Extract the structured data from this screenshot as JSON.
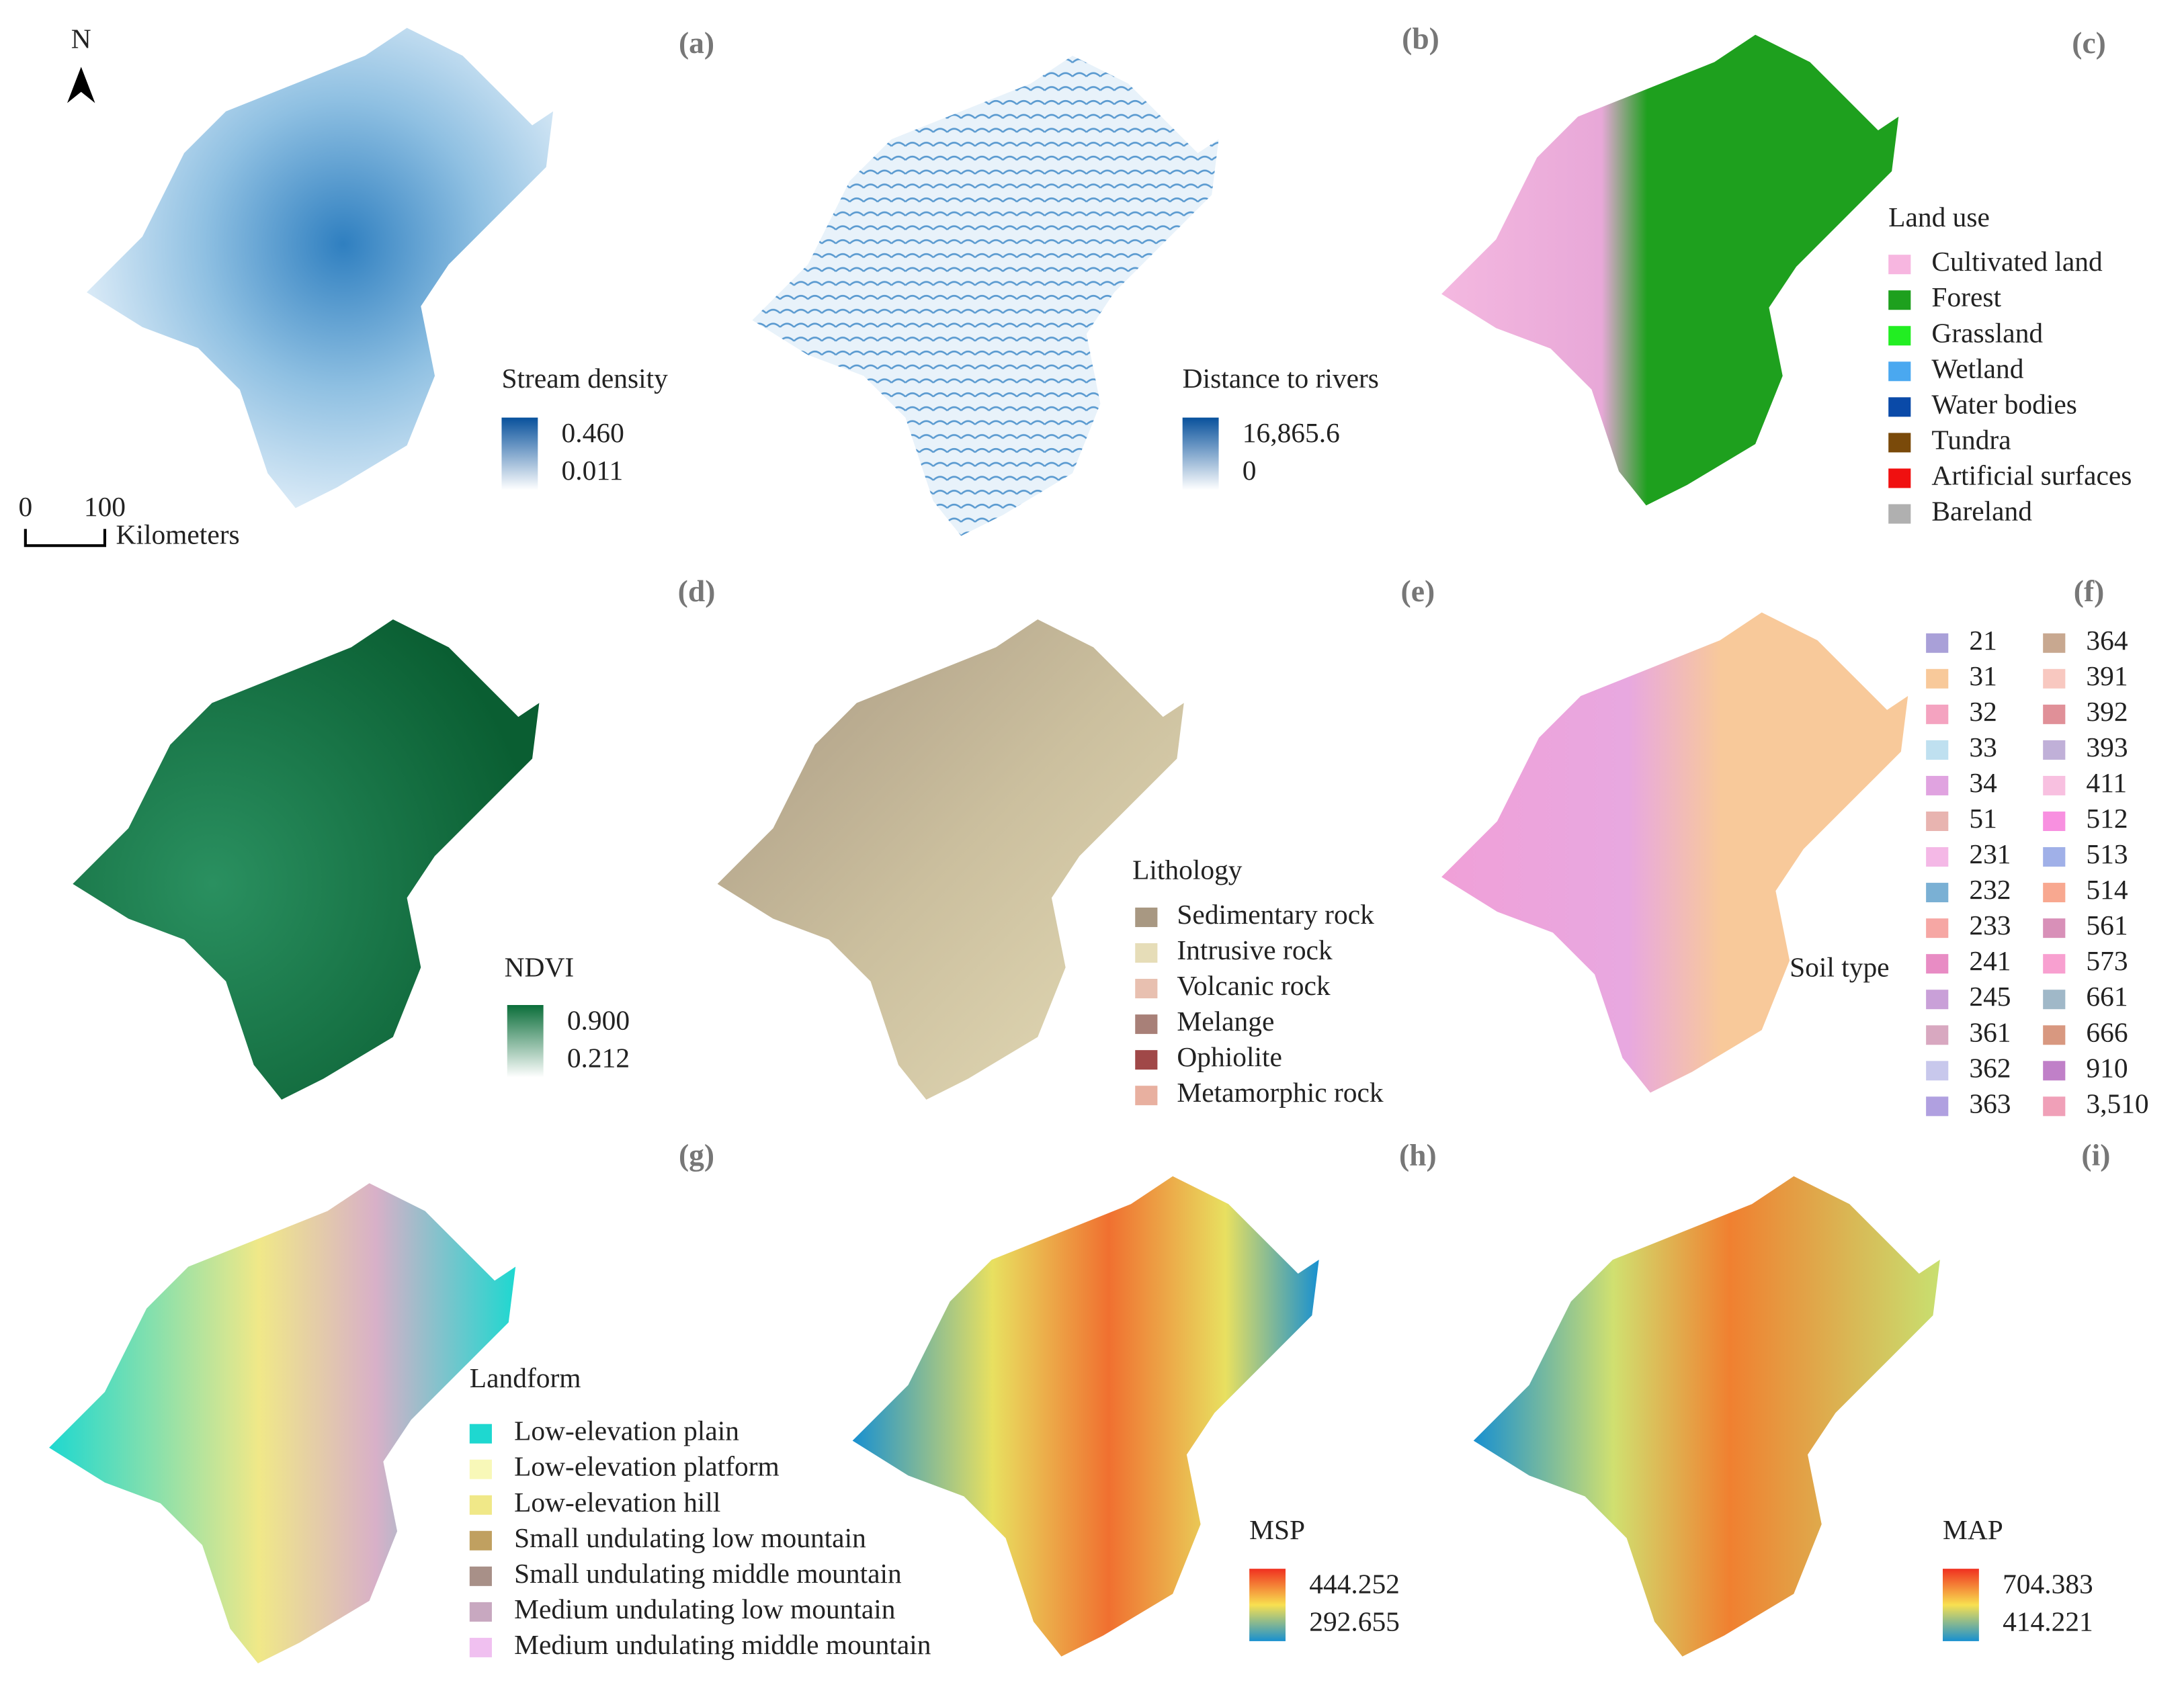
{
  "north": "N",
  "scale_bar": {
    "start": "0",
    "end": "100",
    "unit": "Kilometers"
  },
  "panels": [
    {
      "label": "(a)",
      "legend": {
        "title": "Stream density",
        "max": "0.460",
        "min": "0.011",
        "ramp": [
          "#08519c",
          "#ffffff"
        ]
      }
    },
    {
      "label": "(b)",
      "legend": {
        "title": "Distance to rivers",
        "max": "16,865.6",
        "min": "0",
        "ramp": [
          "#08519c",
          "#ffffff"
        ]
      }
    },
    {
      "label": "(c)",
      "legend": {
        "title": "Land use",
        "items": [
          {
            "name": "Cultivated land",
            "color": "#f7b6e0"
          },
          {
            "name": "Forest",
            "color": "#1ea01e"
          },
          {
            "name": "Grassland",
            "color": "#22ee22"
          },
          {
            "name": "Wetland",
            "color": "#4aa8f0"
          },
          {
            "name": "Water bodies",
            "color": "#0a4aa8"
          },
          {
            "name": "Tundra",
            "color": "#7a4a0a"
          },
          {
            "name": "Artificial surfaces",
            "color": "#f01010"
          },
          {
            "name": "Bareland",
            "color": "#b0b0b0"
          }
        ]
      }
    },
    {
      "label": "(d)",
      "legend": {
        "title": "NDVI",
        "max": "0.900",
        "min": "0.212",
        "ramp": [
          "#0b6e3a",
          "#ffffff"
        ]
      }
    },
    {
      "label": "(e)",
      "legend": {
        "title": "Lithology",
        "items": [
          {
            "name": "Sedimentary rock",
            "color": "#a89882"
          },
          {
            "name": "Intrusive rock",
            "color": "#e6ddb8"
          },
          {
            "name": "Volcanic rock",
            "color": "#e8c0b0"
          },
          {
            "name": "Melange",
            "color": "#a88078"
          },
          {
            "name": "Ophiolite",
            "color": "#a04848"
          },
          {
            "name": "Metamorphic rock",
            "color": "#e8b0a0"
          }
        ]
      }
    },
    {
      "label": "(f)",
      "legend": {
        "title": "Soil type",
        "items": [
          {
            "name": "21",
            "color": "#a9a0d8"
          },
          {
            "name": "31",
            "color": "#f8c99a"
          },
          {
            "name": "32",
            "color": "#f4a3c0"
          },
          {
            "name": "33",
            "color": "#bfe0f0"
          },
          {
            "name": "34",
            "color": "#e0a3e0"
          },
          {
            "name": "51",
            "color": "#e8b4b0"
          },
          {
            "name": "231",
            "color": "#f4b8e6"
          },
          {
            "name": "232",
            "color": "#7ab0d4"
          },
          {
            "name": "233",
            "color": "#f6a7a4"
          },
          {
            "name": "241",
            "color": "#e88cc4"
          },
          {
            "name": "245",
            "color": "#c9a0d8"
          },
          {
            "name": "361",
            "color": "#d8a8c0"
          },
          {
            "name": "362",
            "color": "#c8c8ec"
          },
          {
            "name": "363",
            "color": "#b0a0e0"
          },
          {
            "name": "364",
            "color": "#c8a890"
          },
          {
            "name": "391",
            "color": "#f8c8c0"
          },
          {
            "name": "392",
            "color": "#e09098"
          },
          {
            "name": "393",
            "color": "#c0b0d8"
          },
          {
            "name": "411",
            "color": "#f8c0e0"
          },
          {
            "name": "512",
            "color": "#f890e0"
          },
          {
            "name": "513",
            "color": "#a0b0e8"
          },
          {
            "name": "514",
            "color": "#f8a890"
          },
          {
            "name": "561",
            "color": "#d890b8"
          },
          {
            "name": "573",
            "color": "#f8a0d0"
          },
          {
            "name": "661",
            "color": "#a0b8c8"
          },
          {
            "name": "666",
            "color": "#d89880"
          },
          {
            "name": "910",
            "color": "#c080c8"
          },
          {
            "name": "3,510",
            "color": "#f0a0b8"
          }
        ]
      }
    },
    {
      "label": "(g)",
      "legend": {
        "title": "Landform",
        "items": [
          {
            "name": "Low-elevation plain",
            "color": "#1ed8d0"
          },
          {
            "name": "Low-elevation platform",
            "color": "#f8f8b8"
          },
          {
            "name": "Low-elevation hill",
            "color": "#f0e888"
          },
          {
            "name": "Small undulating low mountain",
            "color": "#c0a060"
          },
          {
            "name": "Small undulating middle mountain",
            "color": "#a89088"
          },
          {
            "name": "Medium undulating low mountain",
            "color": "#c8a8c0"
          },
          {
            "name": "Medium undulating middle mountain",
            "color": "#f0c0f0"
          }
        ]
      }
    },
    {
      "label": "(h)",
      "legend": {
        "title": "MSP",
        "max": "444.252",
        "min": "292.655",
        "ramp": [
          "#f03020",
          "#f8e050",
          "#1890d0"
        ]
      }
    },
    {
      "label": "(i)",
      "legend": {
        "title": "MAP",
        "max": "704.383",
        "min": "414.221",
        "ramp": [
          "#f03020",
          "#f8e050",
          "#1890d0"
        ]
      }
    }
  ]
}
